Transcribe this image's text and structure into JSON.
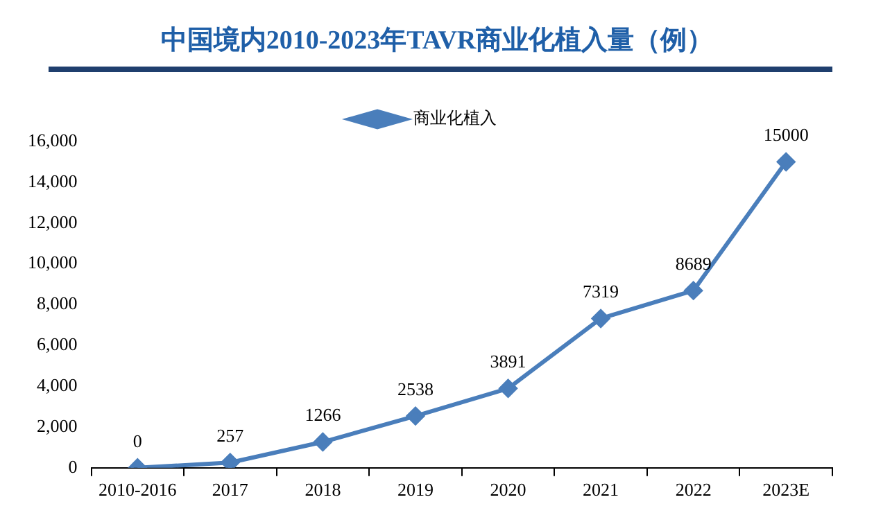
{
  "chart_data": {
    "type": "line",
    "title": "中国境内2010-2023年TAVR商业化植入量（例）",
    "categories": [
      "2010-2016",
      "2017",
      "2018",
      "2019",
      "2020",
      "2021",
      "2022",
      "2023E"
    ],
    "series": [
      {
        "name": "商业化植入",
        "color": "#4a7ebb",
        "values": [
          0,
          257,
          1266,
          2538,
          3891,
          7319,
          8689,
          15000
        ]
      }
    ],
    "ylim": [
      0,
      16000
    ],
    "yticks": [
      {
        "value": 0,
        "label": "0"
      },
      {
        "value": 2000,
        "label": "2,000"
      },
      {
        "value": 4000,
        "label": "4,000"
      },
      {
        "value": 6000,
        "label": "6,000"
      },
      {
        "value": 8000,
        "label": "8,000"
      },
      {
        "value": 10000,
        "label": "10,000"
      },
      {
        "value": 12000,
        "label": "12,000"
      },
      {
        "value": 14000,
        "label": "14,000"
      },
      {
        "value": 16000,
        "label": "16,000"
      }
    ],
    "legend": "top",
    "marker": "diamond",
    "line_style": "solid",
    "data_labels": true,
    "grid": false
  }
}
